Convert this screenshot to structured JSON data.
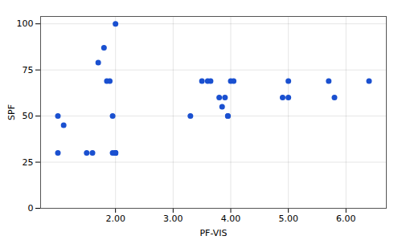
{
  "chart_data": {
    "type": "scatter",
    "x": [
      1.0,
      1.0,
      1.1,
      1.5,
      1.6,
      1.7,
      1.8,
      1.85,
      1.9,
      1.95,
      1.95,
      2.0,
      2.0,
      2.0,
      2.0,
      3.3,
      3.5,
      3.6,
      3.65,
      3.8,
      3.85,
      3.9,
      3.95,
      3.95,
      4.0,
      4.05,
      4.9,
      5.0,
      5.0,
      5.7,
      5.8,
      6.4
    ],
    "values": [
      50,
      30,
      45,
      30,
      30,
      79,
      87,
      69,
      69,
      50,
      30,
      100,
      30,
      30,
      30,
      50,
      69,
      69,
      69,
      60,
      55,
      60,
      50,
      50,
      69,
      69,
      60,
      69,
      60,
      69,
      60,
      69
    ],
    "color": "#1a50d0",
    "xlabel": "PF-VIS",
    "ylabel": "SPF",
    "xlim": [
      0.7,
      6.7
    ],
    "ylim": [
      0,
      104
    ],
    "xticks": [
      {
        "value": 2.0,
        "label": "2.00"
      },
      {
        "value": 3.0,
        "label": "3.00"
      },
      {
        "value": 4.0,
        "label": "4.00"
      },
      {
        "value": 5.0,
        "label": "5.00"
      },
      {
        "value": 6.0,
        "label": "6.00"
      }
    ],
    "yticks": [
      0,
      25,
      50,
      75,
      100
    ],
    "grid": true
  }
}
